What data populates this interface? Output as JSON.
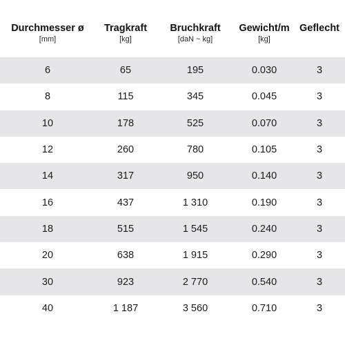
{
  "table": {
    "headers": [
      {
        "label": "Durchmesser ø",
        "unit": "[mm]"
      },
      {
        "label": "Tragkraft",
        "unit": "[kg]"
      },
      {
        "label": "Bruchkraft",
        "unit": "[daN ~ kg]"
      },
      {
        "label": "Gewicht/m",
        "unit": "[kg]"
      },
      {
        "label": "Geflecht",
        "unit": ""
      }
    ],
    "rows": [
      [
        "6",
        "65",
        "195",
        "0.030",
        "3"
      ],
      [
        "8",
        "115",
        "345",
        "0.045",
        "3"
      ],
      [
        "10",
        "178",
        "525",
        "0.070",
        "3"
      ],
      [
        "12",
        "260",
        "780",
        "0.105",
        "3"
      ],
      [
        "14",
        "317",
        "950",
        "0.140",
        "3"
      ],
      [
        "16",
        "437",
        "1 310",
        "0.190",
        "3"
      ],
      [
        "18",
        "515",
        "1 545",
        "0.240",
        "3"
      ],
      [
        "20",
        "638",
        "1 915",
        "0.290",
        "3"
      ],
      [
        "30",
        "923",
        "2 770",
        "0.540",
        "3"
      ],
      [
        "40",
        "1 187",
        "3 560",
        "0.710",
        "3"
      ]
    ],
    "colors": {
      "stripe": "#e6e6e8",
      "background": "#ffffff",
      "text": "#111111"
    }
  }
}
